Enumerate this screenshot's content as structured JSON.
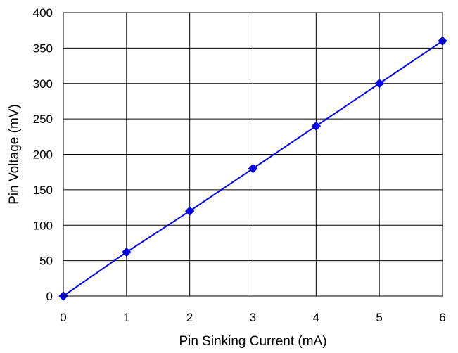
{
  "chart_data": {
    "type": "line",
    "title": "",
    "xlabel": "Pin Sinking Current (mA)",
    "ylabel": "Pin Voltage (mV)",
    "xlim": [
      0,
      6
    ],
    "ylim": [
      0,
      400
    ],
    "xticks": [
      0,
      1,
      2,
      3,
      4,
      5,
      6
    ],
    "yticks": [
      0,
      50,
      100,
      150,
      200,
      250,
      300,
      350,
      400
    ],
    "grid": true,
    "legend": "none",
    "series": [
      {
        "color": "#0000ee",
        "marker": "diamond",
        "x": [
          0,
          1,
          2,
          3,
          4,
          5,
          6
        ],
        "y": [
          0,
          62,
          120,
          180,
          240,
          300,
          360
        ]
      }
    ]
  }
}
